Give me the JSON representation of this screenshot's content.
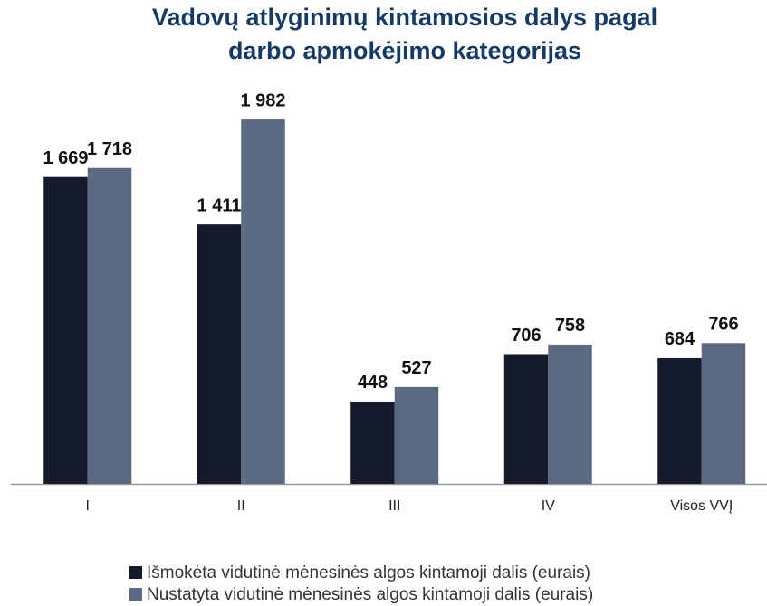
{
  "chart_data": {
    "type": "bar",
    "title": [
      "Vadovų atlyginimų kintamosios dalys pagal",
      "darbo apmokėjimo kategorijas"
    ],
    "categories": [
      "I",
      "II",
      "III",
      "IV",
      "Visos VVĮ"
    ],
    "series": [
      {
        "name": "Išmokėta vidutinė mėnesinės algos kintamoji dalis (eurais)",
        "color": "#151b2b",
        "values": [
          1669,
          1411,
          448,
          706,
          684
        ],
        "value_labels": [
          "1 669",
          "1 411",
          "448",
          "706",
          "684"
        ]
      },
      {
        "name": "Nustatyta vidutinė mėnesinės algos kintamoji dalis (eurais)",
        "color": "#5b6983",
        "values": [
          1718,
          1982,
          527,
          758,
          766
        ],
        "value_labels": [
          "1 718",
          "1 982",
          "527",
          "758",
          "766"
        ]
      }
    ]
  }
}
